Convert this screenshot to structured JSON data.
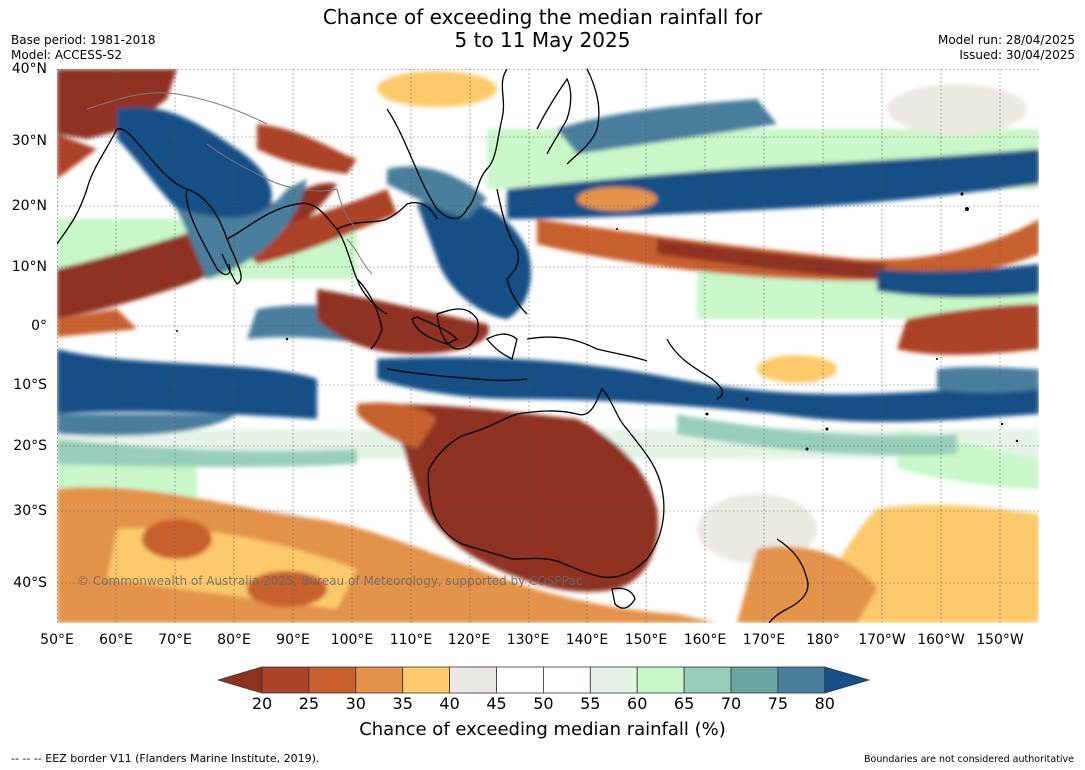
{
  "header": {
    "title_line1": "Chance of exceeding the median rainfall for",
    "title_line2": "5 to 11 May 2025",
    "base_period": "Base period: 1981-2018",
    "model": "Model: ACCESS-S2",
    "model_run": "Model run: 28/04/2025",
    "issued": "Issued: 30/04/2025"
  },
  "map": {
    "copyright": "© Commonwealth of Australia 2025, Bureau of Meteorology, supported by COSPPac",
    "lat_ticks": [
      "40°N",
      "30°N",
      "20°N",
      "10°N",
      "0°",
      "10°S",
      "20°S",
      "30°S",
      "40°S"
    ],
    "lon_ticks": [
      "50°E",
      "60°E",
      "70°E",
      "80°E",
      "90°E",
      "100°E",
      "110°E",
      "120°E",
      "130°E",
      "140°E",
      "150°E",
      "160°E",
      "170°E",
      "180°",
      "170°W",
      "160°W",
      "150°W"
    ]
  },
  "colorbar": {
    "labels": [
      "20",
      "25",
      "30",
      "35",
      "40",
      "45",
      "50",
      "55",
      "60",
      "65",
      "70",
      "75",
      "80"
    ],
    "colors": [
      "#8f3320",
      "#ac4326",
      "#c8602f",
      "#e3924a",
      "#fcc96a",
      "#ece8e2",
      "#ffffff",
      "#ffffff",
      "#e6f4e8",
      "#c9f7c9",
      "#97cfba",
      "#6aa4a3",
      "#497e9d",
      "#174f86"
    ],
    "title": "Chance of exceeding median rainfall (%)"
  },
  "footer": {
    "eez_note": "--  --  -- EEZ border V11 (Flanders Marine Institute, 2019).",
    "boundaries_note": "Boundaries are not considered authoritative"
  }
}
